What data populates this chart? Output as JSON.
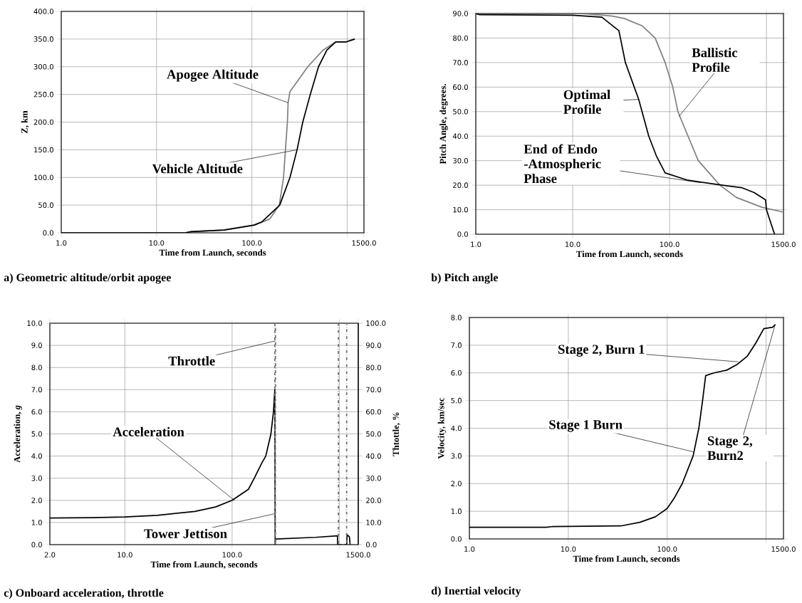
{
  "chart_data": [
    {
      "type": "line",
      "title": "a) Geometric altitude/orbit apogee",
      "xlabel": "Time from Launch, seconds",
      "ylabel": "Z, km",
      "log": "x",
      "grid": true,
      "xlim": [
        1,
        1500
      ],
      "xticks": [
        {
          "value": 1,
          "label": "1.0"
        },
        {
          "value": 10,
          "label": "10.0"
        },
        {
          "value": 100,
          "label": "100.0"
        },
        {
          "value": 1000,
          "label": null
        },
        {
          "value": 1500,
          "label": "1500.0"
        }
      ],
      "ylim": [
        0,
        400
      ],
      "yticks": [
        {
          "value": 0,
          "label": "0.0"
        },
        {
          "value": 50,
          "label": "50.0"
        },
        {
          "value": 100,
          "label": "100.0"
        },
        {
          "value": 150,
          "label": "150.0"
        },
        {
          "value": 200,
          "label": "200.0"
        },
        {
          "value": 250,
          "label": "250.0"
        },
        {
          "value": 300,
          "label": "300.0"
        },
        {
          "value": 350,
          "label": "350.0"
        },
        {
          "value": 400,
          "label": "400.0"
        }
      ],
      "series": [
        {
          "color": "#808080",
          "x": [
            1,
            10,
            20,
            23,
            51,
            106,
            154,
            169,
            194,
            215,
            225,
            236,
            240,
            251,
            386,
            558,
            759,
            980,
            1200
          ],
          "values": [
            0,
            0,
            0,
            2,
            5,
            14,
            25,
            35,
            50,
            100,
            150,
            200,
            235,
            255,
            300,
            330,
            345,
            345,
            350
          ]
        },
        {
          "color": "#000000",
          "x": [
            1,
            10,
            20,
            23,
            51,
            106,
            128,
            196,
            251,
            298,
            342,
            410,
            500,
            612,
            759,
            980,
            1200
          ],
          "values": [
            0,
            0,
            0,
            2,
            5,
            14,
            20,
            50,
            100,
            150,
            200,
            250,
            300,
            330,
            345,
            345,
            350
          ]
        }
      ],
      "annotations": [
        {
          "text": "Apogee Altitude",
          "x": 240,
          "y": 235
        },
        {
          "text": "Vehicle Altitude",
          "x": 298,
          "y": 150
        }
      ]
    },
    {
      "type": "line",
      "title": "b) Pitch angle",
      "xlabel": "Time from Launch, seconds",
      "ylabel": "Pitch Angle, degrees.",
      "log": "x",
      "grid": true,
      "xlim": [
        1,
        1500
      ],
      "xticks": [
        {
          "value": 1,
          "label": "1.0"
        },
        {
          "value": 10,
          "label": "10.0"
        },
        {
          "value": 100,
          "label": "100.0"
        },
        {
          "value": 1000,
          "label": null
        },
        {
          "value": 1500,
          "label": "1500.0"
        }
      ],
      "ylim": [
        0,
        90
      ],
      "yticks": [
        {
          "value": 0,
          "label": "0.0"
        },
        {
          "value": 10,
          "label": "10.0"
        },
        {
          "value": 20,
          "label": "20.0"
        },
        {
          "value": 30,
          "label": "30.0"
        },
        {
          "value": 40,
          "label": "40.0"
        },
        {
          "value": 50,
          "label": "50.0"
        },
        {
          "value": 60,
          "label": "60.0"
        },
        {
          "value": 70,
          "label": "70.0"
        },
        {
          "value": 80,
          "label": "80.0"
        },
        {
          "value": 90,
          "label": "90.0"
        }
      ],
      "series": [
        {
          "color": "#808080",
          "x": [
            1,
            12,
            25,
            34,
            52,
            71,
            90,
            108,
            122,
            155,
            198,
            331,
            490,
            897,
            1500
          ],
          "values": [
            90,
            90,
            89,
            88,
            85,
            80,
            70,
            60,
            50,
            40,
            30,
            20,
            15,
            11,
            9
          ]
        },
        {
          "color": "#000000",
          "x": [
            1,
            1.1,
            10,
            20,
            30,
            35,
            48,
            61,
            73,
            90,
            155,
            285,
            553,
            748,
            980,
            1000,
            1213
          ],
          "values": [
            90,
            89.5,
            89.3,
            88.5,
            83,
            70,
            55,
            40,
            32,
            25,
            22,
            20.5,
            19,
            17,
            14,
            10,
            0
          ]
        }
      ],
      "annotations": [
        {
          "text": "Optimal Profile",
          "x": 48,
          "y": 55
        },
        {
          "text": "Ballistic Profile",
          "x": 125,
          "y": 48
        },
        {
          "text": "End of Endo -Atmospheric Phase",
          "x": 210,
          "y": 21
        }
      ]
    },
    {
      "type": "line",
      "title": "c) Onboard acceleration, throttle",
      "xlabel": "Time from Launch, seconds",
      "ylabel": "Acceleration, *g*",
      "y2label": "Thtottle, %",
      "log": "x",
      "grid": true,
      "xlim": [
        2,
        1500
      ],
      "xticks": [
        {
          "value": 2,
          "label": "2.0"
        },
        {
          "value": 10,
          "label": "10.0"
        },
        {
          "value": 100,
          "label": "100.0"
        },
        {
          "value": 1000,
          "label": null
        },
        {
          "value": 1500,
          "label": "1500.0"
        }
      ],
      "ylim": [
        0,
        10
      ],
      "yticks": [
        {
          "value": 0,
          "label": "0.0"
        },
        {
          "value": 1,
          "label": "1.0"
        },
        {
          "value": 2,
          "label": "2.0"
        },
        {
          "value": 3,
          "label": "3.0"
        },
        {
          "value": 4,
          "label": "4.0"
        },
        {
          "value": 5,
          "label": "5.0"
        },
        {
          "value": 6,
          "label": "6.0"
        },
        {
          "value": 7,
          "label": "7.0"
        },
        {
          "value": 8,
          "label": "8.0"
        },
        {
          "value": 9,
          "label": "9.0"
        },
        {
          "value": 10,
          "label": "10.0"
        }
      ],
      "y2lim": [
        0,
        100
      ],
      "y2ticks": [
        {
          "value": 0,
          "label": "0.0"
        },
        {
          "value": 10,
          "label": "10.0"
        },
        {
          "value": 20,
          "label": "20.0"
        },
        {
          "value": 30,
          "label": "30.0"
        },
        {
          "value": 40,
          "label": "40.0"
        },
        {
          "value": 50,
          "label": "50.0"
        },
        {
          "value": 60,
          "label": "60.0"
        },
        {
          "value": 70,
          "label": "70.0"
        },
        {
          "value": 80,
          "label": "80.0"
        },
        {
          "value": 90,
          "label": "90.0"
        },
        {
          "value": 100,
          "label": "100.0"
        }
      ],
      "series": [
        {
          "color": "#000000",
          "x": [
            2,
            5,
            10,
            20,
            45,
            70,
            100,
            142,
            161,
            190,
            206,
            230,
            243,
            250,
            252,
            254,
            600,
            960,
            962,
            1170,
            1180,
            1240,
            1260
          ],
          "values": [
            1.2,
            1.22,
            1.25,
            1.32,
            1.5,
            1.7,
            2.0,
            2.5,
            3.0,
            3.7,
            4.0,
            5.0,
            6.0,
            7.0,
            0,
            0.25,
            0.33,
            0.4,
            0,
            0,
            0.45,
            0.35,
            0
          ]
        },
        {
          "color": "#707070",
          "axis": "y2",
          "line_style": "dashed",
          "x": [
            2,
            250,
            251,
            253,
            254,
            978,
            980,
            1168,
            1170
          ],
          "values": [
            100,
            100,
            0,
            0,
            100,
            100,
            0,
            0,
            100
          ]
        }
      ],
      "annotations": [
        {
          "text": "Throttle",
          "x": 252,
          "y": 9.2
        },
        {
          "text": "Acceleration",
          "x": 105,
          "y": 2.0
        },
        {
          "text": "Tower Jettison",
          "x": 252,
          "y": 1.4
        }
      ]
    },
    {
      "type": "line",
      "title": "d) Inertial velocity",
      "xlabel": "Time from Launch, seconds",
      "ylabel": "Velocity, km/sec",
      "log": "x",
      "grid": true,
      "xlim": [
        1,
        1500
      ],
      "xticks": [
        {
          "value": 1,
          "label": "1.0"
        },
        {
          "value": 10,
          "label": "10.0"
        },
        {
          "value": 100,
          "label": "100.0"
        },
        {
          "value": 1000,
          "label": null
        },
        {
          "value": 1500,
          "label": "1500.0"
        }
      ],
      "ylim": [
        0,
        8
      ],
      "yticks": [
        {
          "value": 0,
          "label": "0.0"
        },
        {
          "value": 1,
          "label": "1.0"
        },
        {
          "value": 2,
          "label": "2.0"
        },
        {
          "value": 3,
          "label": "3.0"
        },
        {
          "value": 4,
          "label": "4.0"
        },
        {
          "value": 5,
          "label": "5.0"
        },
        {
          "value": 6,
          "label": "6.0"
        },
        {
          "value": 7,
          "label": "7.0"
        },
        {
          "value": 8,
          "label": "8.0"
        }
      ],
      "series": [
        {
          "color": "#000000",
          "x": [
            1,
            6,
            7,
            34,
            53,
            76,
            100,
            119,
            142,
            183,
            209,
            228,
            245,
            298,
            401,
            508,
            645,
            794,
            948,
            1167,
            1238
          ],
          "values": [
            0.42,
            0.42,
            0.45,
            0.47,
            0.6,
            0.8,
            1.1,
            1.5,
            2.0,
            3.0,
            4.0,
            5.0,
            5.9,
            6.0,
            6.1,
            6.3,
            6.6,
            7.1,
            7.6,
            7.65,
            7.75
          ]
        }
      ],
      "annotations": [
        {
          "text": "Stage 2, Burn 1",
          "x": 525,
          "y": 6.4
        },
        {
          "text": "Stage 1 Burn",
          "x": 183,
          "y": 3.15
        },
        {
          "text": "Stage 2, Burn2",
          "x": 1238,
          "y": 7.75
        }
      ]
    }
  ]
}
